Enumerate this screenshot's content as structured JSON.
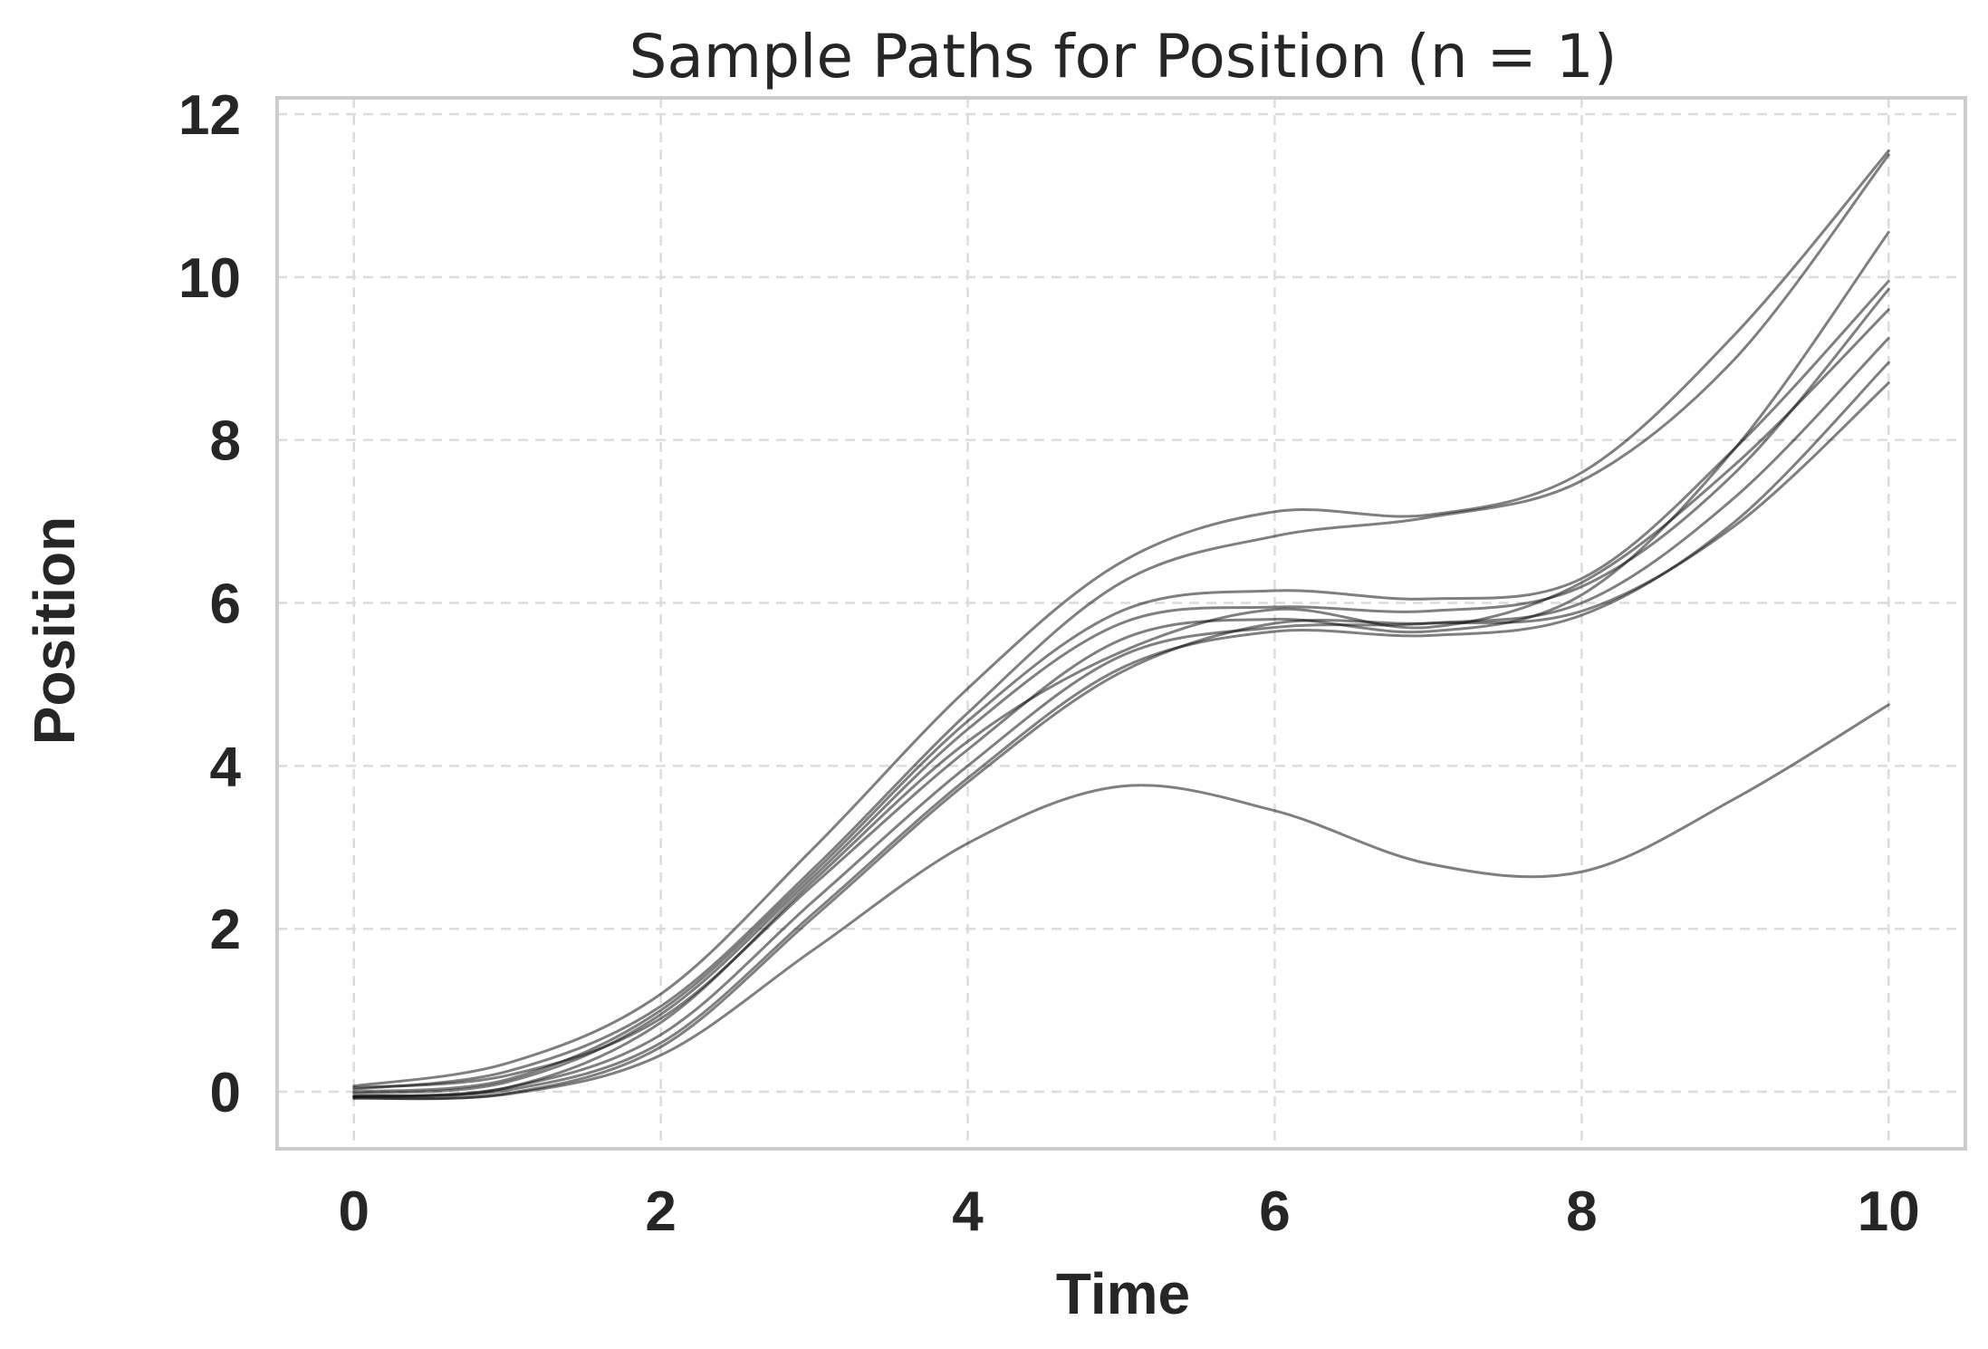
{
  "chart_data": {
    "type": "line",
    "title": "Sample Paths for Position (n = 1)",
    "xlabel": "Time",
    "ylabel": "Position",
    "xlim": [
      -0.5,
      10.5
    ],
    "ylim": [
      -0.7,
      12.2
    ],
    "xticks": [
      0,
      2,
      4,
      6,
      8,
      10
    ],
    "yticks": [
      0,
      2,
      4,
      6,
      8,
      10,
      12
    ],
    "grid": true,
    "line_color": "#000000",
    "line_opacity": 0.5,
    "x": [
      0,
      1,
      2,
      3,
      4,
      5,
      6,
      7,
      8,
      9,
      10
    ],
    "series": [
      {
        "values": [
          0.07,
          0.35,
          1.2,
          3.0,
          4.95,
          6.5,
          7.12,
          7.08,
          7.6,
          9.3,
          11.55
        ]
      },
      {
        "values": [
          0.03,
          0.25,
          1.05,
          2.75,
          4.65,
          6.25,
          6.82,
          7.05,
          7.5,
          9.0,
          11.5
        ]
      },
      {
        "values": [
          0.0,
          0.15,
          1.0,
          2.7,
          4.55,
          5.9,
          6.15,
          6.05,
          6.3,
          7.9,
          9.95
        ]
      },
      {
        "values": [
          -0.02,
          0.12,
          0.95,
          2.65,
          4.45,
          5.75,
          5.95,
          5.9,
          6.2,
          7.6,
          9.85
        ]
      },
      {
        "values": [
          -0.05,
          0.05,
          0.85,
          2.6,
          4.3,
          5.4,
          5.92,
          5.7,
          6.25,
          7.7,
          9.6
        ]
      },
      {
        "values": [
          0.05,
          0.2,
          0.9,
          2.55,
          4.2,
          5.55,
          5.8,
          5.65,
          6.1,
          7.9,
          10.55
        ]
      },
      {
        "values": [
          -0.06,
          0.05,
          0.7,
          2.35,
          4.0,
          5.35,
          5.7,
          5.75,
          6.0,
          7.3,
          9.25
        ]
      },
      {
        "values": [
          -0.06,
          0.02,
          0.6,
          2.2,
          3.85,
          5.2,
          5.65,
          5.6,
          5.85,
          7.0,
          8.95
        ]
      },
      {
        "values": [
          -0.08,
          -0.02,
          0.55,
          2.15,
          3.8,
          5.15,
          5.75,
          5.75,
          5.9,
          6.95,
          8.7
        ]
      },
      {
        "values": [
          -0.08,
          -0.03,
          0.45,
          1.75,
          3.05,
          3.75,
          3.45,
          2.8,
          2.7,
          3.6,
          4.75
        ]
      }
    ]
  }
}
